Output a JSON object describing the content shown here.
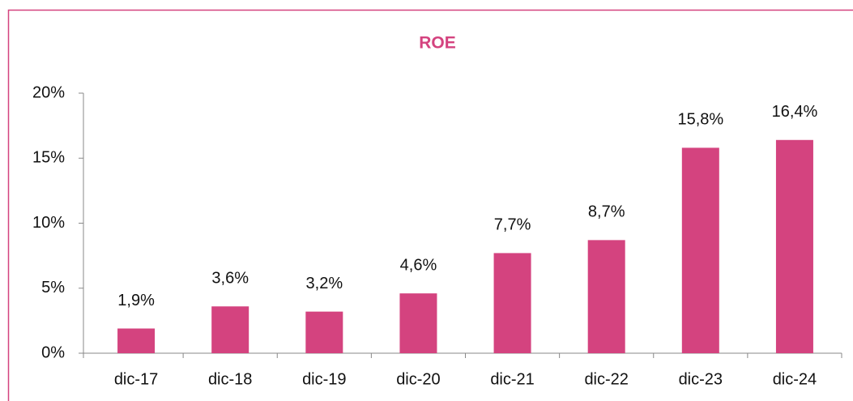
{
  "chart_data": {
    "type": "bar",
    "title": "ROE",
    "categories": [
      "dic-17",
      "dic-18",
      "dic-19",
      "dic-20",
      "dic-21",
      "dic-22",
      "dic-23",
      "dic-24"
    ],
    "values": [
      1.9,
      3.6,
      3.2,
      4.6,
      7.7,
      8.7,
      15.8,
      16.4
    ],
    "value_labels": [
      "1,9%",
      "3,6%",
      "3,2%",
      "4,6%",
      "7,7%",
      "8,7%",
      "15,8%",
      "16,4%"
    ],
    "color": "#d4437f",
    "ylim": [
      0,
      20
    ],
    "yticks": [
      {
        "value": 0,
        "label": "0%"
      },
      {
        "value": 5,
        "label": "5%"
      },
      {
        "value": 10,
        "label": "10%"
      },
      {
        "value": 15,
        "label": "15%"
      },
      {
        "value": 20,
        "label": "20%"
      }
    ],
    "grid": false
  }
}
